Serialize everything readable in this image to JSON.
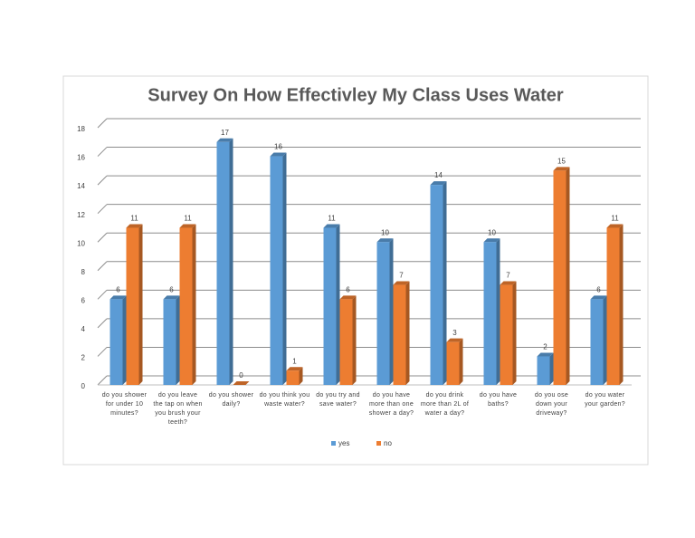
{
  "chart_data": {
    "type": "bar",
    "title": "Survey On How Effectivley My Class Uses Water",
    "categories": [
      "do you shower for under 10 minutes?",
      "do you leave the tap on when you brush your teeth?",
      "do you shower daily?",
      "do you think you waste water?",
      "do you try and save water?",
      "do you have more than one shower a day?",
      "do you drink more than 2L of water a day?",
      "do you have baths?",
      "do you ose down your driveway?",
      "do you water your garden?"
    ],
    "series": [
      {
        "name": "yes",
        "color": "#5b9bd5",
        "values": [
          6,
          6,
          17,
          16,
          11,
          10,
          14,
          10,
          2,
          6
        ]
      },
      {
        "name": "no",
        "color": "#ed7d31",
        "values": [
          11,
          11,
          0,
          1,
          6,
          7,
          3,
          7,
          15,
          11
        ]
      }
    ],
    "ylim": [
      0,
      18
    ],
    "yticks": [
      0,
      2,
      4,
      6,
      8,
      10,
      12,
      14,
      16,
      18
    ],
    "grid": true,
    "legend": "bottom"
  }
}
